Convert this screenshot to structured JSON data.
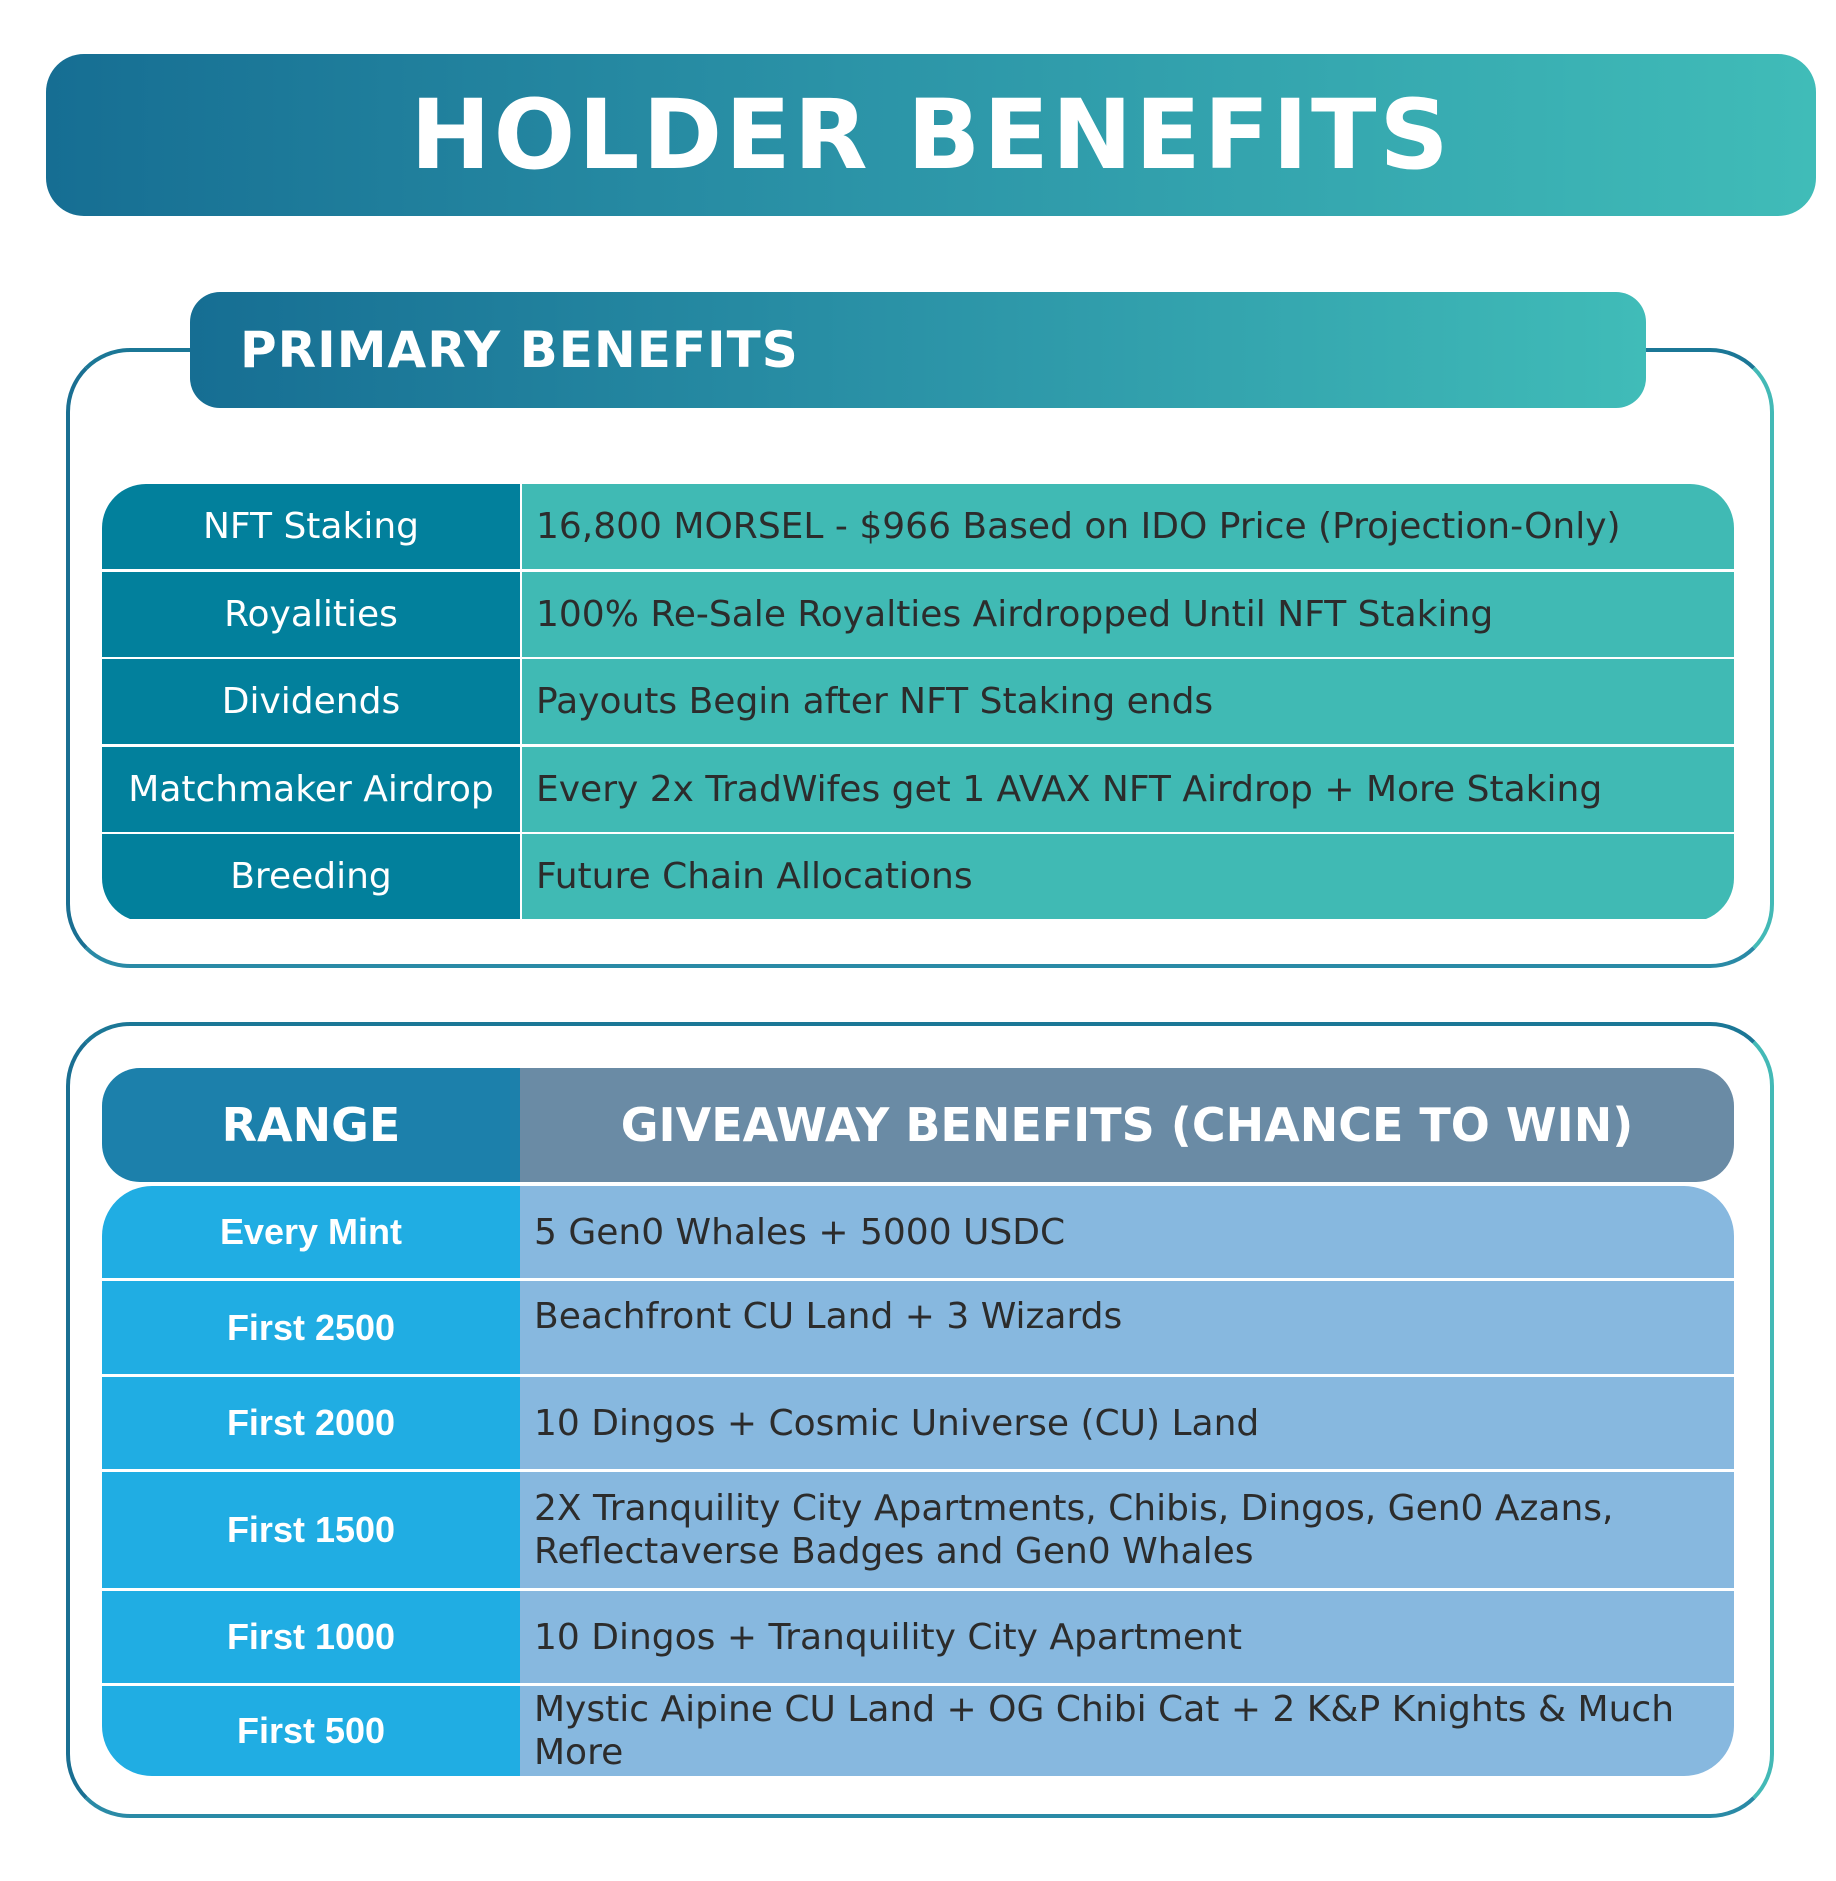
{
  "title": "HOLDER BENEFITS",
  "primary": {
    "heading": "PRIMARY BENEFITS",
    "rows": [
      {
        "label": "NFT Staking",
        "value": "16,800 MORSEL - $966 Based on IDO Price (Projection-Only)"
      },
      {
        "label": "Royalities",
        "value": "100% Re-Sale Royalties Airdropped Until NFT Staking"
      },
      {
        "label": "Dividends",
        "value": "Payouts Begin after NFT Staking ends"
      },
      {
        "label": "Matchmaker Airdrop",
        "value": "Every 2x TradWifes get 1 AVAX NFT Airdrop + More Staking"
      },
      {
        "label": "Breeding",
        "value": "Future Chain Allocations"
      }
    ]
  },
  "giveaway": {
    "header_range": "RANGE",
    "header_benefits": "GIVEAWAY BENEFITS (CHANCE TO WIN)",
    "rows": [
      {
        "range": "Every Mint",
        "benefit": "5 Gen0 Whales + 5000 USDC"
      },
      {
        "range": "First 2500",
        "benefit": "Beachfront CU Land + 3 Wizards"
      },
      {
        "range": "First 2000",
        "benefit": "10 Dingos + Cosmic Universe (CU) Land"
      },
      {
        "range": "First 1500",
        "benefit": "2X Tranquility City Apartments, Chibis, Dingos, Gen0 Azans, Reflectaverse Badges and Gen0 Whales"
      },
      {
        "range": "First 1000",
        "benefit": "10 Dingos + Tranquility City Apartment"
      },
      {
        "range": "First 500",
        "benefit": "Mystic Aipine CU Land + OG Chibi Cat + 2 K&P Knights & Much More"
      }
    ]
  }
}
